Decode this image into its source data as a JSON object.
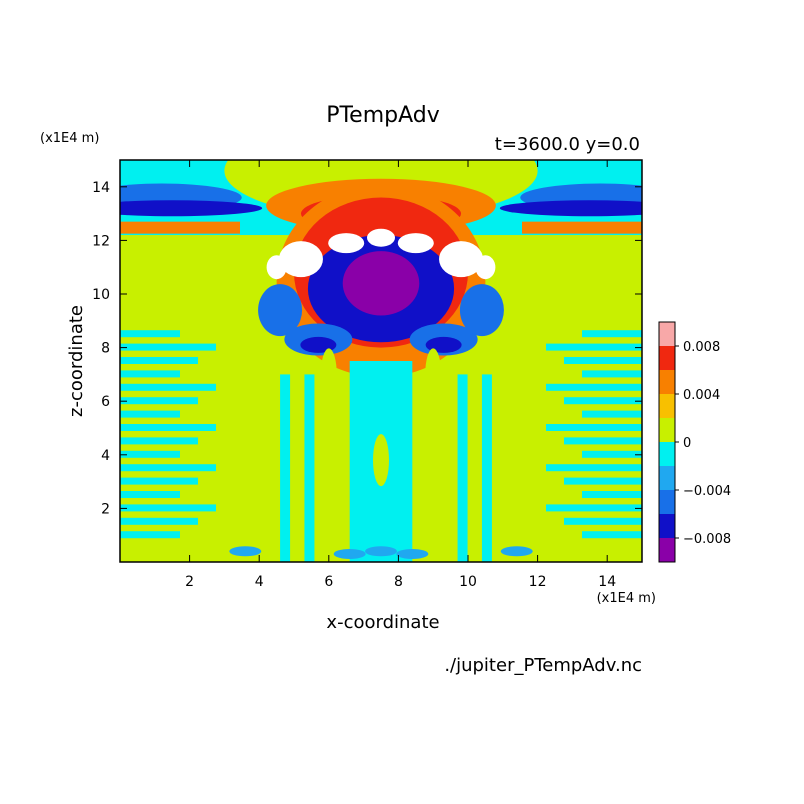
{
  "chart_data": {
    "type": "heatmap",
    "title": "PTempAdv",
    "subtitle": "t=3600.0 y=0.0",
    "xlabel": "x-coordinate",
    "ylabel": "z-coordinate",
    "x_unit": "(x1E4 m)",
    "y_unit": "(x1E4 m)",
    "source_file": "./jupiter_PTempAdv.nc",
    "xlim": [
      0,
      15
    ],
    "ylim": [
      0,
      15
    ],
    "xticks": [
      2,
      4,
      6,
      8,
      10,
      12,
      14
    ],
    "yticks": [
      2,
      4,
      6,
      8,
      10,
      12,
      14
    ],
    "colorbar": {
      "levels": [
        -0.01,
        -0.008,
        -0.006,
        -0.004,
        -0.002,
        0,
        0.002,
        0.004,
        0.006,
        0.008,
        0.01
      ],
      "colors": [
        "#8a00a8",
        "#1010c8",
        "#1870e8",
        "#20a8f0",
        "#00f0f0",
        "#c8f000",
        "#f8c000",
        "#f88000",
        "#f02810",
        "#f8a8a8"
      ],
      "tick_labels": [
        {
          "value": 0.008,
          "label": "0.008"
        },
        {
          "value": 0.004,
          "label": "0.004"
        },
        {
          "value": 0,
          "label": "0"
        },
        {
          "value": -0.004,
          "label": "−0.004"
        },
        {
          "value": -0.008,
          "label": "−0.008"
        }
      ]
    },
    "field_background": "#c8f000"
  }
}
